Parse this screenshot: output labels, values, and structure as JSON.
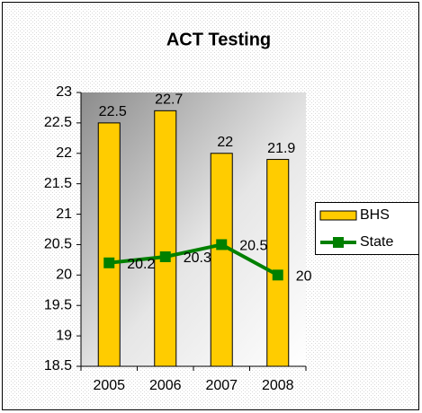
{
  "chart_data": {
    "type": "bar",
    "title": "ACT Testing",
    "categories": [
      "2005",
      "2006",
      "2007",
      "2008"
    ],
    "series": [
      {
        "name": "BHS",
        "type": "bar",
        "color": "#ffcc00",
        "values": [
          22.5,
          22.7,
          22,
          21.9
        ]
      },
      {
        "name": "State",
        "type": "line",
        "color": "#008000",
        "values": [
          20.2,
          20.3,
          20.5,
          20
        ]
      }
    ],
    "ylim": [
      18.5,
      23
    ],
    "yticks": [
      18.5,
      19,
      19.5,
      20,
      20.5,
      21,
      21.5,
      22,
      22.5,
      23
    ],
    "legend": "right"
  }
}
